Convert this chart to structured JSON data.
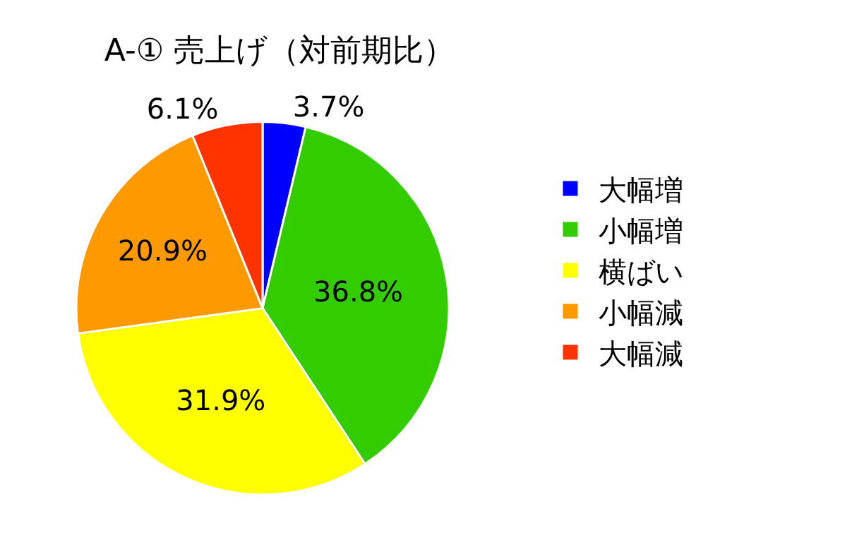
{
  "chart_data": {
    "type": "pie",
    "title": "A-① 売上げ（対前期比）",
    "categories": [
      "大幅増",
      "小幅増",
      "横ばい",
      "小幅減",
      "大幅減"
    ],
    "values": [
      3.7,
      36.8,
      31.9,
      20.9,
      6.1
    ],
    "value_labels": [
      "3.7%",
      "36.8%",
      "31.9%",
      "20.9%",
      "6.1%"
    ],
    "colors": [
      "#0000ff",
      "#33cc00",
      "#ffff00",
      "#ff9900",
      "#ff3300"
    ],
    "legend": "right"
  }
}
